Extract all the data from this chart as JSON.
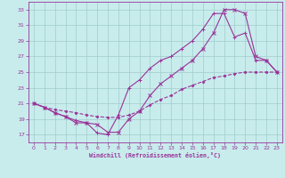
{
  "xlabel": "Windchill (Refroidissement éolien,°C)",
  "xlim": [
    -0.5,
    23.5
  ],
  "ylim": [
    16,
    34
  ],
  "xticks": [
    0,
    1,
    2,
    3,
    4,
    5,
    6,
    7,
    8,
    9,
    10,
    11,
    12,
    13,
    14,
    15,
    16,
    17,
    18,
    19,
    20,
    21,
    22,
    23
  ],
  "yticks": [
    17,
    19,
    21,
    23,
    25,
    27,
    29,
    31,
    33
  ],
  "bg_color": "#c8ecec",
  "line_color": "#993399",
  "grid_color": "#a0cccc",
  "line1_x": [
    0,
    1,
    2,
    3,
    4,
    5,
    6,
    7,
    8,
    9,
    10,
    11,
    12,
    13,
    14,
    15,
    16,
    17,
    18,
    19,
    20,
    21,
    22,
    23
  ],
  "line1_y": [
    21.0,
    20.5,
    19.8,
    19.3,
    18.8,
    18.5,
    17.2,
    17.0,
    19.5,
    23.0,
    24.0,
    25.5,
    26.5,
    27.0,
    28.0,
    29.0,
    30.5,
    32.5,
    32.5,
    29.5,
    30.0,
    26.5,
    26.5,
    25.0
  ],
  "line2_x": [
    0,
    1,
    2,
    3,
    4,
    5,
    6,
    7,
    8,
    9,
    10,
    11,
    12,
    13,
    14,
    15,
    16,
    17,
    18,
    19,
    20,
    21,
    22,
    23
  ],
  "line2_y": [
    21.0,
    20.5,
    19.8,
    19.3,
    18.5,
    18.5,
    18.3,
    17.3,
    17.3,
    19.0,
    20.0,
    22.0,
    23.5,
    24.5,
    25.5,
    26.5,
    28.0,
    30.0,
    33.0,
    33.0,
    32.5,
    27.0,
    26.5,
    25.0
  ],
  "line3_x": [
    0,
    1,
    2,
    3,
    4,
    5,
    6,
    7,
    8,
    9,
    10,
    11,
    12,
    13,
    14,
    15,
    16,
    17,
    18,
    19,
    20,
    21,
    22,
    23
  ],
  "line3_y": [
    21.0,
    20.5,
    20.2,
    20.0,
    19.8,
    19.5,
    19.3,
    19.2,
    19.2,
    19.5,
    20.0,
    20.8,
    21.5,
    22.0,
    22.8,
    23.3,
    23.8,
    24.3,
    24.5,
    24.8,
    25.0,
    25.0,
    25.0,
    25.0
  ]
}
